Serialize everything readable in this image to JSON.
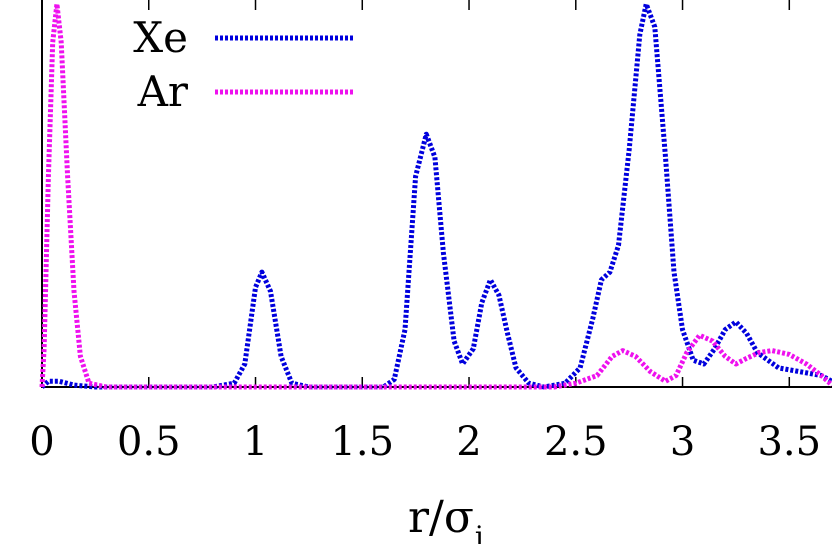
{
  "chart_data": {
    "type": "line",
    "xlabel": "r/σ",
    "xlabel_subscript": "i",
    "ylabel": "",
    "xlim": [
      0,
      3.7
    ],
    "ylim": [
      0,
      1.0
    ],
    "x_ticks": [
      "0",
      "0.5",
      "1",
      "1.5",
      "2",
      "2.5",
      "3",
      "3.5"
    ],
    "grid": false,
    "legend_position": "top-left",
    "series": [
      {
        "name": "Xe",
        "color": "#0000dd",
        "style": "dotted",
        "points": [
          [
            0.0,
            0.0
          ],
          [
            0.03,
            0.015
          ],
          [
            0.08,
            0.015
          ],
          [
            0.15,
            0.005
          ],
          [
            0.25,
            0.0
          ],
          [
            0.8,
            0.0
          ],
          [
            0.9,
            0.01
          ],
          [
            0.95,
            0.06
          ],
          [
            1.0,
            0.26
          ],
          [
            1.03,
            0.3
          ],
          [
            1.07,
            0.25
          ],
          [
            1.12,
            0.08
          ],
          [
            1.17,
            0.01
          ],
          [
            1.25,
            0.0
          ],
          [
            1.6,
            0.0
          ],
          [
            1.65,
            0.02
          ],
          [
            1.7,
            0.15
          ],
          [
            1.75,
            0.55
          ],
          [
            1.8,
            0.66
          ],
          [
            1.84,
            0.6
          ],
          [
            1.88,
            0.35
          ],
          [
            1.93,
            0.12
          ],
          [
            1.97,
            0.06
          ],
          [
            2.02,
            0.1
          ],
          [
            2.06,
            0.22
          ],
          [
            2.1,
            0.28
          ],
          [
            2.14,
            0.24
          ],
          [
            2.18,
            0.14
          ],
          [
            2.22,
            0.05
          ],
          [
            2.28,
            0.01
          ],
          [
            2.35,
            0.0
          ],
          [
            2.45,
            0.01
          ],
          [
            2.52,
            0.05
          ],
          [
            2.58,
            0.18
          ],
          [
            2.62,
            0.28
          ],
          [
            2.66,
            0.3
          ],
          [
            2.7,
            0.37
          ],
          [
            2.75,
            0.62
          ],
          [
            2.8,
            0.92
          ],
          [
            2.83,
            1.0
          ],
          [
            2.87,
            0.94
          ],
          [
            2.92,
            0.6
          ],
          [
            2.96,
            0.3
          ],
          [
            3.0,
            0.15
          ],
          [
            3.05,
            0.07
          ],
          [
            3.1,
            0.06
          ],
          [
            3.15,
            0.1
          ],
          [
            3.2,
            0.15
          ],
          [
            3.25,
            0.17
          ],
          [
            3.3,
            0.14
          ],
          [
            3.35,
            0.09
          ],
          [
            3.45,
            0.05
          ],
          [
            3.55,
            0.04
          ],
          [
            3.65,
            0.03
          ],
          [
            3.7,
            0.015
          ]
        ]
      },
      {
        "name": "Ar",
        "color": "#ee11ee",
        "style": "dotted",
        "points": [
          [
            0.0,
            0.0
          ],
          [
            0.01,
            0.1
          ],
          [
            0.03,
            0.55
          ],
          [
            0.05,
            0.9
          ],
          [
            0.07,
            1.0
          ],
          [
            0.09,
            0.9
          ],
          [
            0.12,
            0.55
          ],
          [
            0.15,
            0.25
          ],
          [
            0.18,
            0.08
          ],
          [
            0.22,
            0.01
          ],
          [
            0.3,
            0.0
          ],
          [
            2.4,
            0.0
          ],
          [
            2.5,
            0.01
          ],
          [
            2.6,
            0.03
          ],
          [
            2.67,
            0.08
          ],
          [
            2.72,
            0.095
          ],
          [
            2.78,
            0.08
          ],
          [
            2.85,
            0.04
          ],
          [
            2.92,
            0.015
          ],
          [
            2.97,
            0.03
          ],
          [
            3.02,
            0.09
          ],
          [
            3.08,
            0.135
          ],
          [
            3.14,
            0.12
          ],
          [
            3.2,
            0.08
          ],
          [
            3.25,
            0.06
          ],
          [
            3.3,
            0.075
          ],
          [
            3.36,
            0.09
          ],
          [
            3.42,
            0.095
          ],
          [
            3.5,
            0.085
          ],
          [
            3.58,
            0.06
          ],
          [
            3.65,
            0.03
          ],
          [
            3.7,
            0.005
          ]
        ]
      }
    ]
  }
}
